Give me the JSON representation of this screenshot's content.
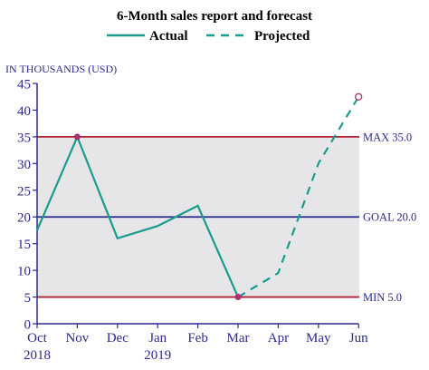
{
  "chart_data": {
    "type": "line",
    "title": "6-Month sales report and forecast",
    "ylabel": "IN THOUSANDS (USD)",
    "ylim": [
      0,
      45
    ],
    "yticks": [
      0,
      5,
      10,
      15,
      20,
      25,
      30,
      35,
      40,
      45
    ],
    "x": [
      "Oct 2018",
      "Nov",
      "Dec",
      "Jan 2019",
      "Feb",
      "Mar",
      "Apr",
      "May",
      "Jun"
    ],
    "xtick_lines": [
      [
        "Oct",
        "2018"
      ],
      [
        "Nov",
        ""
      ],
      [
        "Dec",
        ""
      ],
      [
        "Jan",
        "2019"
      ],
      [
        "Feb",
        ""
      ],
      [
        "Mar",
        ""
      ],
      [
        "Apr",
        ""
      ],
      [
        "May",
        ""
      ],
      [
        "Jun",
        ""
      ]
    ],
    "series": [
      {
        "name": "Actual",
        "style": "solid",
        "x": [
          "Oct 2018",
          "Nov",
          "Dec",
          "Jan 2019",
          "Feb",
          "Mar"
        ],
        "values": [
          17.5,
          35,
          16,
          18.3,
          22.1,
          5
        ]
      },
      {
        "name": "Projected",
        "style": "dashed",
        "x": [
          "Mar",
          "Apr",
          "May",
          "Jun"
        ],
        "values": [
          5,
          9.5,
          30,
          42.5
        ]
      }
    ],
    "reference_lines": [
      {
        "label": "MAX 35.0",
        "value": 35,
        "color": "#b22234"
      },
      {
        "label": "GOAL 20.0",
        "value": 20,
        "color": "#2b2c8c"
      },
      {
        "label": "MIN 5.0",
        "value": 5,
        "color": "#b22234"
      }
    ],
    "shaded_band": [
      5,
      35
    ],
    "legend_position": "top-center",
    "grid": false,
    "colors": {
      "series": "#1a9b8e",
      "axis": "#2b2c8c",
      "band": "#e6e6e8",
      "marker": "#a8326f",
      "title": "#000000"
    }
  }
}
